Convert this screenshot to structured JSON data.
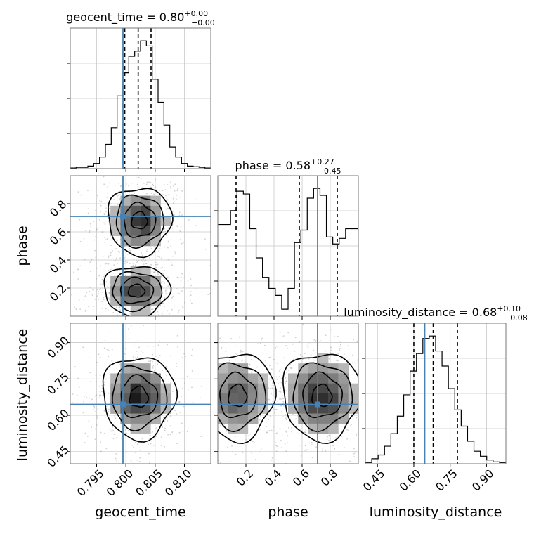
{
  "chart_data": {
    "type": "corner",
    "grid": true,
    "parameters": [
      {
        "name": "geocent_time",
        "xlabel": "geocent_time",
        "title_main": "geocent_time = 0.80",
        "title_sup": "+0.00",
        "title_sub": "−0.00",
        "range": [
          0.7905,
          0.8145
        ],
        "ticks": [
          0.795,
          0.8,
          0.805,
          0.81
        ],
        "tick_labels": [
          "0.795",
          "0.800",
          "0.805",
          "0.810"
        ],
        "injection": 0.7995,
        "quantiles": [
          0.7998,
          0.8021,
          0.8043
        ],
        "hist": [
          0.005,
          0.01,
          0.01,
          0.02,
          0.04,
          0.09,
          0.19,
          0.32,
          0.57,
          0.75,
          0.88,
          0.92,
          1.0,
          0.96,
          0.7,
          0.52,
          0.34,
          0.17,
          0.09,
          0.04,
          0.02,
          0.015,
          0.01,
          0.005
        ]
      },
      {
        "name": "phase",
        "xlabel": "phase",
        "ylabel": "phase",
        "title_main": "phase = 0.58",
        "title_sup": "+0.27",
        "title_sub": "−0.45",
        "range": [
          0.0,
          1.0
        ],
        "ticks": [
          0.2,
          0.4,
          0.6,
          0.8
        ],
        "tick_labels": [
          "0.2",
          "0.4",
          "0.6",
          "0.8"
        ],
        "injection": 0.71,
        "quantiles": [
          0.13,
          0.58,
          0.85
        ],
        "hist": [
          0.66,
          0.66,
          0.76,
          0.9,
          0.88,
          0.63,
          0.42,
          0.28,
          0.2,
          0.15,
          0.05,
          0.2,
          0.53,
          0.62,
          0.85,
          0.92,
          0.87,
          0.57,
          0.52,
          0.56,
          0.63,
          0.63
        ]
      },
      {
        "name": "luminosity_distance",
        "xlabel": "luminosity_distance",
        "ylabel": "luminosity_distance",
        "title_main": "luminosity_distance = 0.68",
        "title_sup": "+0.10",
        "title_sub": "−0.08",
        "range": [
          0.4,
          0.98
        ],
        "ticks": [
          0.45,
          0.6,
          0.75,
          0.9
        ],
        "tick_labels": [
          "0.45",
          "0.60",
          "0.75",
          "0.90"
        ],
        "injection": 0.645,
        "quantiles": [
          0.6,
          0.68,
          0.78
        ],
        "hist": [
          0.01,
          0.04,
          0.07,
          0.14,
          0.24,
          0.38,
          0.55,
          0.74,
          0.88,
          1.0,
          1.02,
          0.9,
          0.78,
          0.6,
          0.43,
          0.3,
          0.18,
          0.1,
          0.06,
          0.03,
          0.015,
          0.01
        ]
      }
    ],
    "pair_blobs": {
      "phase|geocent_time": [
        {
          "x": 0.8023,
          "y": 0.68,
          "sx": 0.0027,
          "sy": 0.12,
          "w": 1.0
        },
        {
          "x": 0.8018,
          "y": 0.18,
          "sx": 0.0028,
          "sy": 0.09,
          "w": 1.0
        }
      ],
      "luminosity_distance|geocent_time": [
        {
          "x": 0.8022,
          "y": 0.675,
          "sx": 0.0031,
          "sy": 0.085,
          "w": 1.0
        }
      ],
      "luminosity_distance|phase": [
        {
          "x": 0.14,
          "y": 0.68,
          "sx": 0.13,
          "sy": 0.09,
          "w": 0.8
        },
        {
          "x": 0.74,
          "y": 0.68,
          "sx": 0.14,
          "sy": 0.09,
          "w": 1.0
        }
      ]
    },
    "colors": {
      "truth": "#4682b4",
      "hist": "#000000",
      "quantile": "#000000"
    }
  }
}
